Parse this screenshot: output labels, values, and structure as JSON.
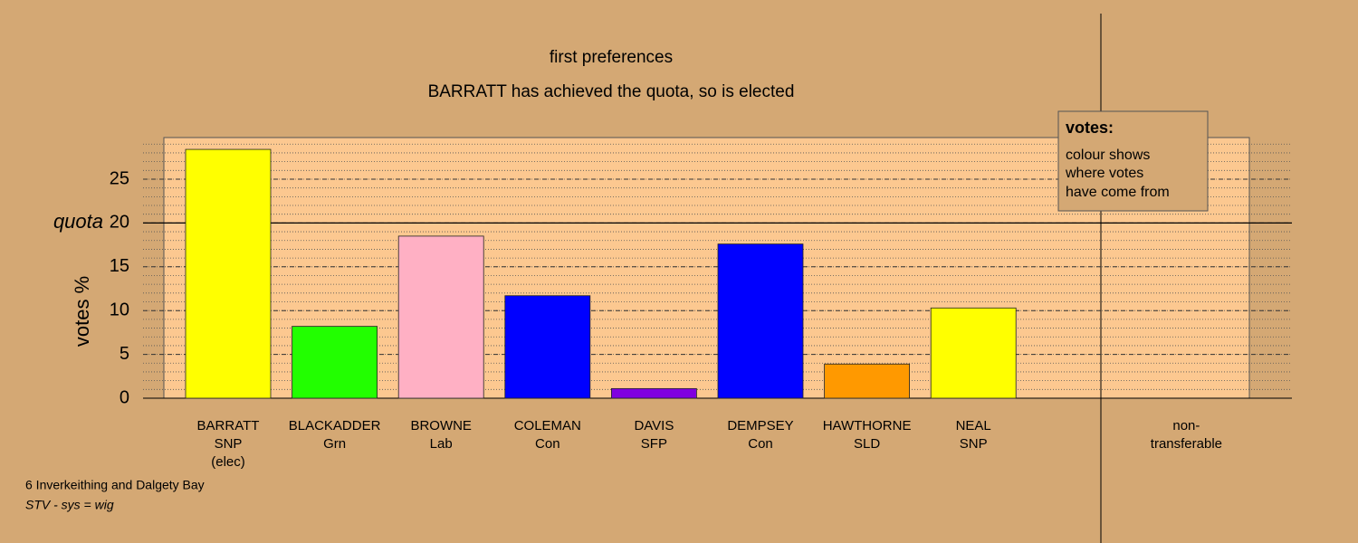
{
  "chart_data": {
    "type": "bar",
    "title": "first preferences",
    "subtitle": "BARRATT has achieved the quota, so is elected",
    "y_label": "votes %",
    "categories": [
      [
        "BARRATT",
        "SNP",
        "(elec)"
      ],
      [
        "BLACKADDER",
        "Grn"
      ],
      [
        "BROWNE",
        "Lab"
      ],
      [
        "COLEMAN",
        "Con"
      ],
      [
        "DAVIS",
        "SFP"
      ],
      [
        "DEMPSEY",
        "Con"
      ],
      [
        "HAWTHORNE",
        "SLD"
      ],
      [
        "NEAL",
        "SNP"
      ],
      [
        "non-",
        "transferable"
      ]
    ],
    "values": [
      28.4,
      8.2,
      18.5,
      11.7,
      1.1,
      17.6,
      3.9,
      10.3,
      0
    ],
    "colors": [
      "#ffff00",
      "#22ff00",
      "#ffb0c4",
      "#0000ff",
      "#8000e0",
      "#0000ff",
      "#ff9900",
      "#ffff00",
      "#888888"
    ],
    "ylim": [
      0,
      29.75
    ],
    "yticks": [
      0,
      5,
      10,
      15,
      20,
      25
    ],
    "minor_step": 1,
    "quota": 20,
    "quota_label": "quota",
    "legend": {
      "title": "votes:",
      "lines": [
        "colour shows",
        "where votes",
        "have come from"
      ]
    },
    "footer": [
      "6 Inverkeithing and Dalgety Bay",
      "STV - sys = wig"
    ]
  }
}
